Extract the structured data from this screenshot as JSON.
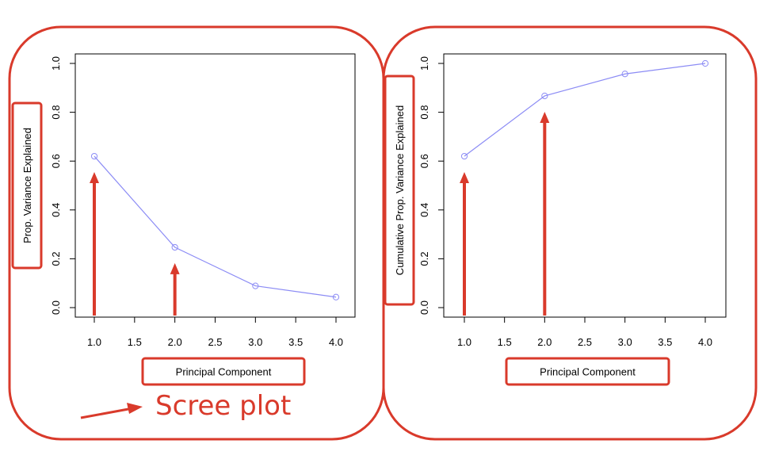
{
  "colors": {
    "line": "#8c8cf5",
    "annotation": "#d93a2b",
    "axis": "#000000"
  },
  "annotation_text": "Scree plot",
  "chart_data": [
    {
      "type": "line",
      "xlabel": "Principal Component",
      "ylabel": "Prop. Variance Explained",
      "x": [
        1,
        2,
        3,
        4
      ],
      "series": [
        {
          "values": [
            0.62,
            0.247,
            0.089,
            0.043
          ]
        }
      ],
      "xlim": [
        1,
        4
      ],
      "ylim": [
        0,
        1
      ],
      "xticks": [
        "1.0",
        "1.5",
        "2.0",
        "2.5",
        "3.0",
        "3.5",
        "4.0"
      ],
      "yticks": [
        "0.0",
        "0.2",
        "0.4",
        "0.6",
        "0.8",
        "1.0"
      ],
      "grid": false,
      "arrows_at_x": [
        1,
        2
      ]
    },
    {
      "type": "line",
      "xlabel": "Principal Component",
      "ylabel": "Cumulative Prop. Variance Explained",
      "x": [
        1,
        2,
        3,
        4
      ],
      "series": [
        {
          "values": [
            0.62,
            0.867,
            0.957,
            1.0
          ]
        }
      ],
      "xlim": [
        1,
        4
      ],
      "ylim": [
        0,
        1
      ],
      "xticks": [
        "1.0",
        "1.5",
        "2.0",
        "2.5",
        "3.0",
        "3.5",
        "4.0"
      ],
      "yticks": [
        "0.0",
        "0.2",
        "0.4",
        "0.6",
        "0.8",
        "1.0"
      ],
      "grid": false,
      "arrows_at_x": [
        1,
        2
      ]
    }
  ]
}
